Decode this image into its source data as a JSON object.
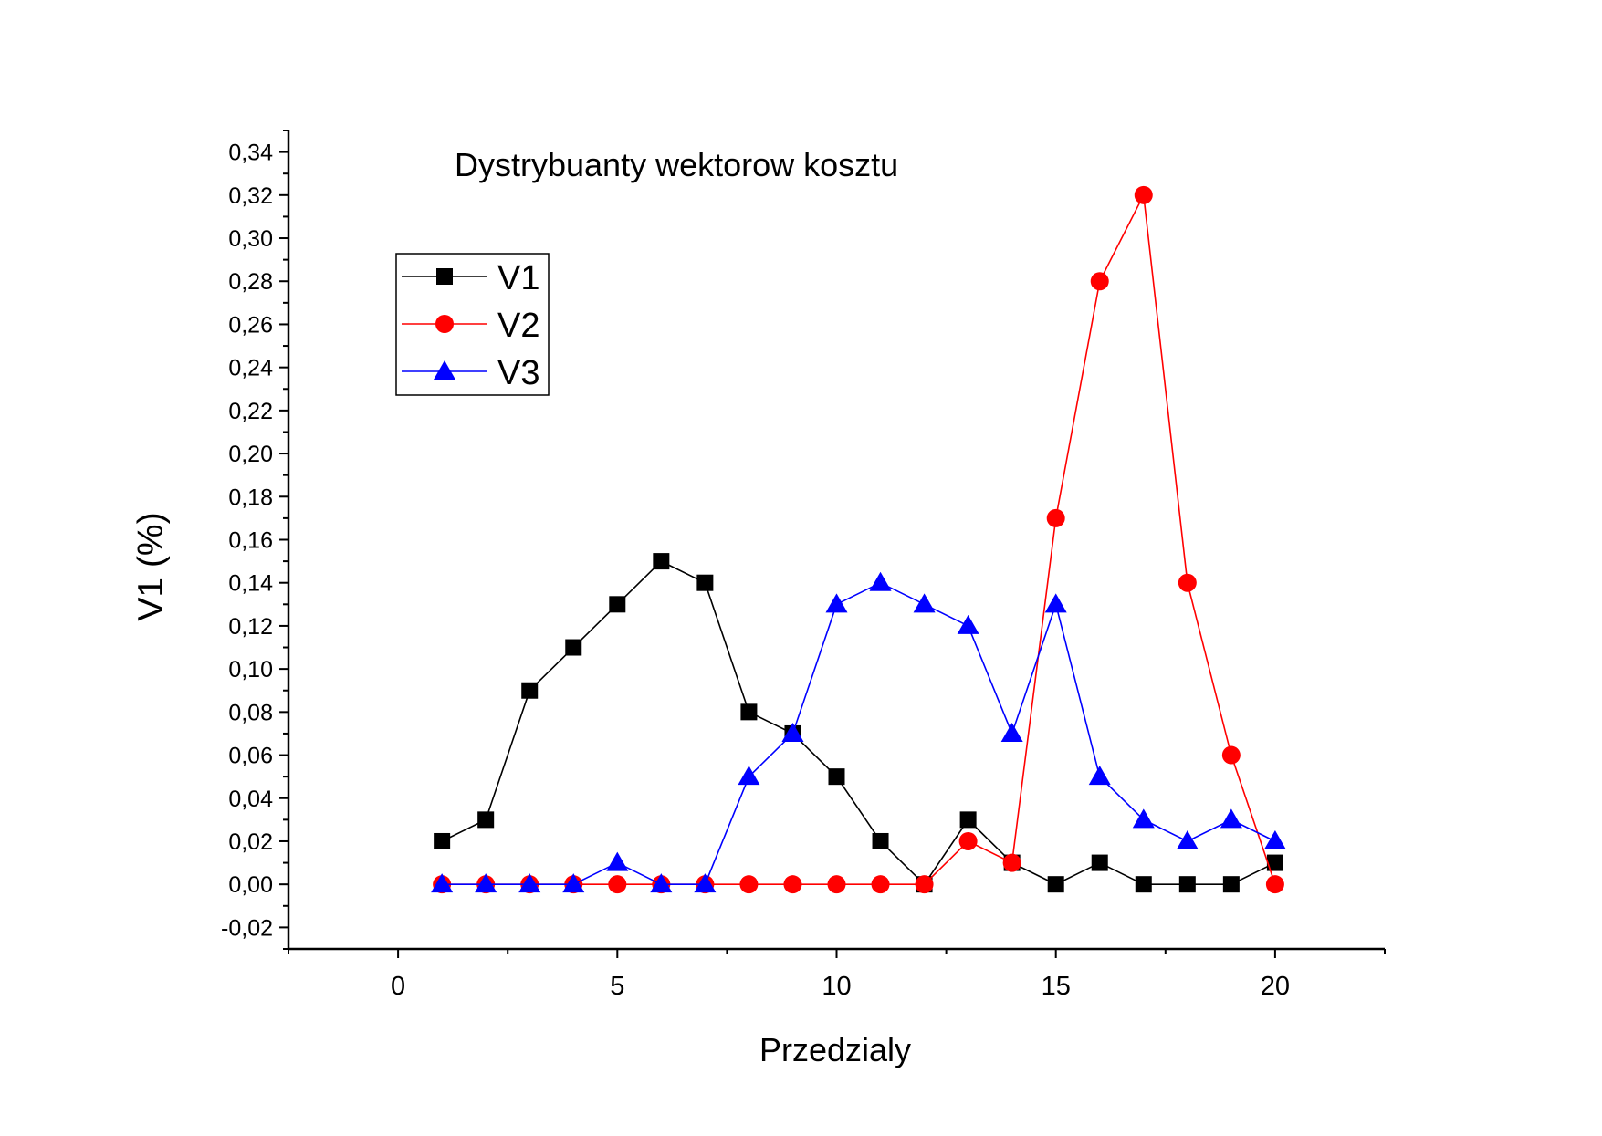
{
  "chart_data": {
    "type": "line",
    "title": "Dystrybuanty wektorow kosztu",
    "xlabel": "Przedzialy",
    "ylabel": "V1 (%)",
    "xlim": [
      -2.5,
      22.5
    ],
    "ylim": [
      -0.03,
      0.35
    ],
    "x_ticks": [
      0,
      5,
      10,
      15,
      20
    ],
    "x_tick_labels": [
      "0",
      "5",
      "10",
      "15",
      "20"
    ],
    "y_ticks": [
      -0.02,
      0.0,
      0.02,
      0.04,
      0.06,
      0.08,
      0.1,
      0.12,
      0.14,
      0.16,
      0.18,
      0.2,
      0.22,
      0.24,
      0.26,
      0.28,
      0.3,
      0.32,
      0.34
    ],
    "y_tick_labels": [
      "-0,02",
      "0,00",
      "0,02",
      "0,04",
      "0,06",
      "0,08",
      "0,10",
      "0,12",
      "0,14",
      "0,16",
      "0,18",
      "0,20",
      "0,22",
      "0,24",
      "0,26",
      "0,28",
      "0,30",
      "0,32",
      "0,34"
    ],
    "x": [
      1,
      2,
      3,
      4,
      5,
      6,
      7,
      8,
      9,
      10,
      11,
      12,
      13,
      14,
      15,
      16,
      17,
      18,
      19,
      20
    ],
    "series": [
      {
        "name": "V1",
        "color": "#000000",
        "marker": "square",
        "values": [
          0.02,
          0.03,
          0.09,
          0.11,
          0.13,
          0.15,
          0.14,
          0.08,
          0.07,
          0.05,
          0.02,
          0.0,
          0.03,
          0.01,
          0.0,
          0.01,
          0.0,
          0.0,
          0.0,
          0.01
        ]
      },
      {
        "name": "V2",
        "color": "#ff0000",
        "marker": "circle",
        "values": [
          0.0,
          0.0,
          0.0,
          0.0,
          0.0,
          0.0,
          0.0,
          0.0,
          0.0,
          0.0,
          0.0,
          0.0,
          0.02,
          0.01,
          0.17,
          0.28,
          0.32,
          0.14,
          0.06,
          0.0
        ]
      },
      {
        "name": "V3",
        "color": "#0000ff",
        "marker": "triangle",
        "values": [
          0.0,
          0.0,
          0.0,
          0.0,
          0.01,
          0.0,
          0.0,
          0.05,
          0.07,
          0.13,
          0.14,
          0.13,
          0.12,
          0.07,
          0.13,
          0.05,
          0.03,
          0.02,
          0.03,
          0.02
        ]
      }
    ],
    "grid": false,
    "legend": "top-left"
  }
}
